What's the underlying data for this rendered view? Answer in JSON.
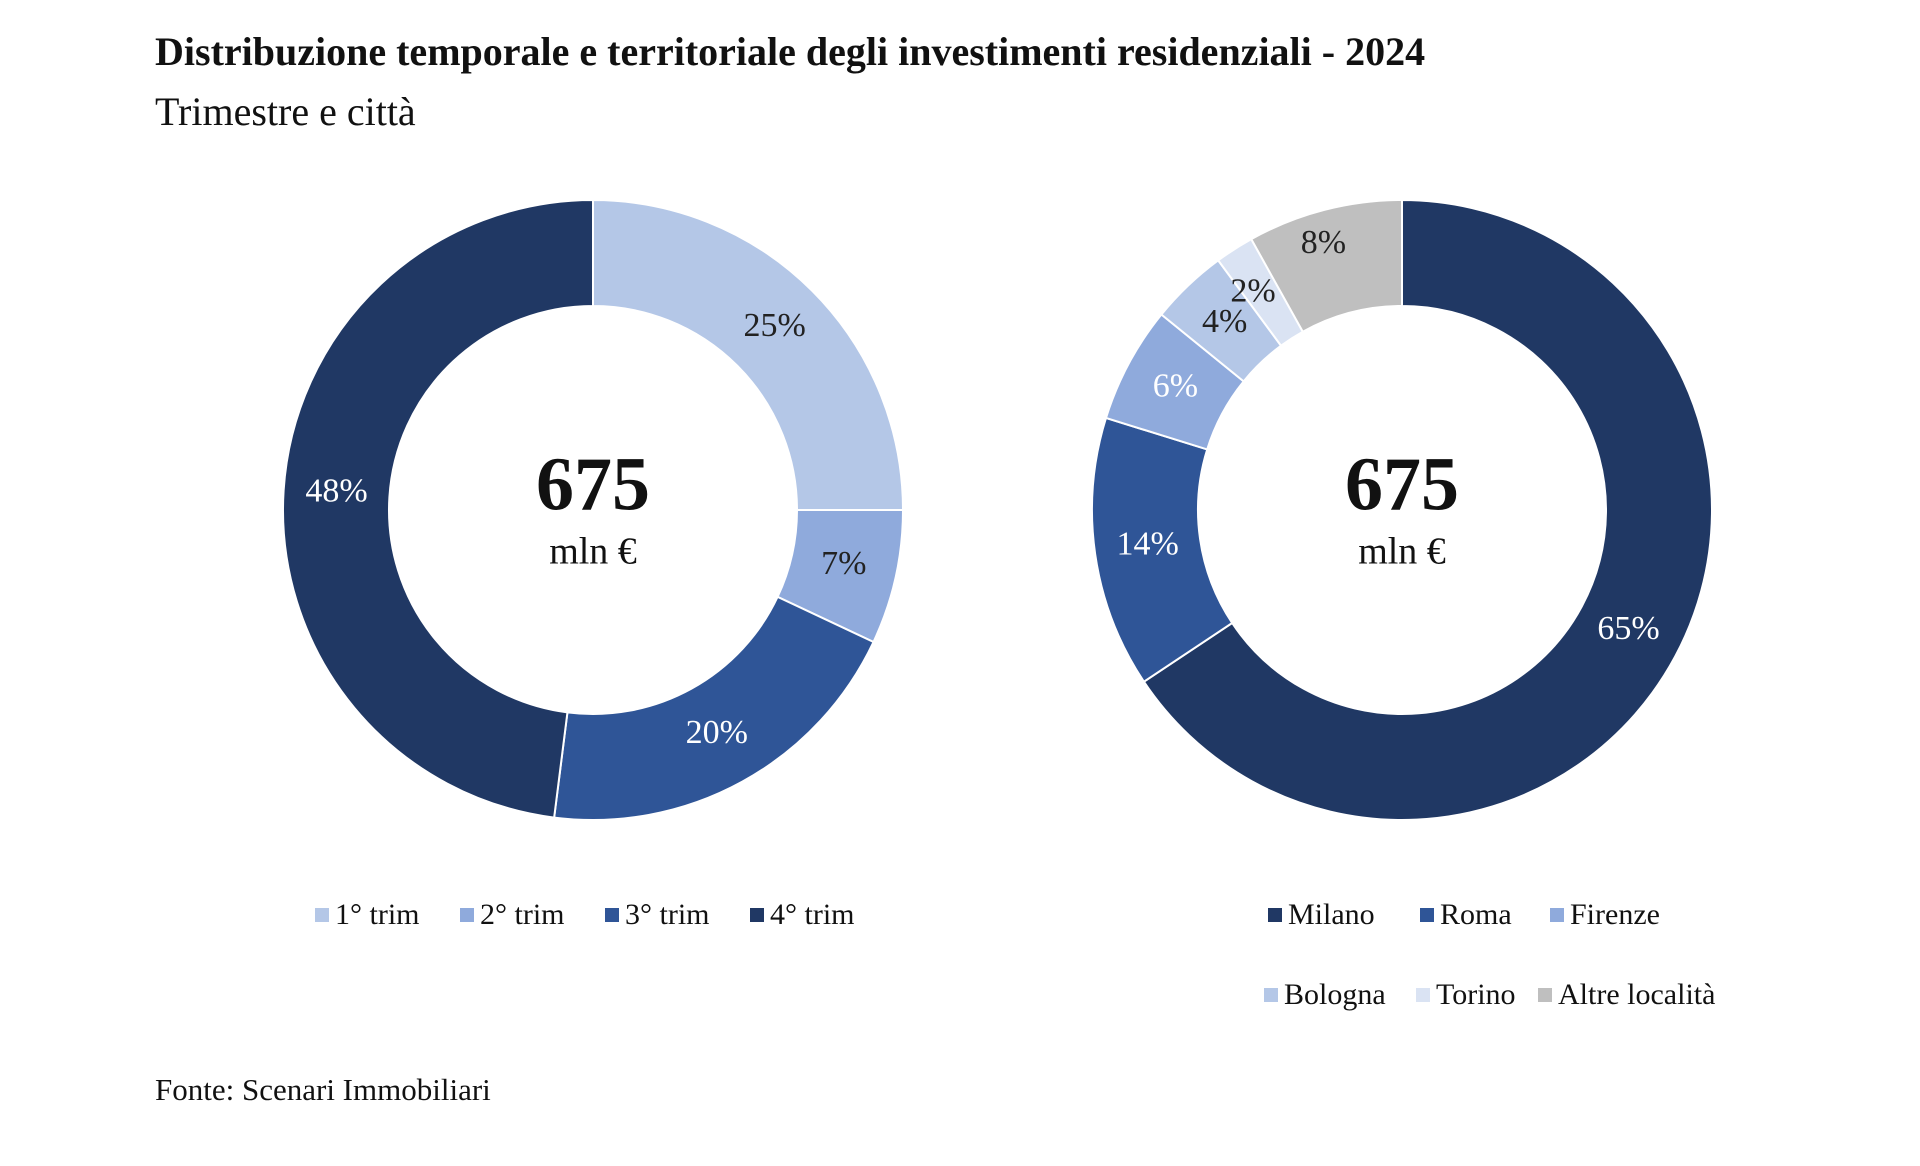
{
  "title": "Distribuzione temporale e territoriale degli investimenti residenziali - 2024",
  "subtitle": "Trimestre e città",
  "source": "Fonte: Scenari Immobiliari",
  "chart_data": [
    {
      "type": "pie",
      "donut": true,
      "center_value": "675",
      "center_unit": "mln €",
      "categories": [
        "1° trim",
        "2° trim",
        "3° trim",
        "4° trim"
      ],
      "values": [
        25,
        7,
        20,
        48
      ],
      "labels": [
        "25%",
        "7%",
        "20%",
        "48%"
      ],
      "colors": [
        "#b4c7e7",
        "#8faadc",
        "#2f5597",
        "#203864"
      ],
      "label_colors": [
        "#222222",
        "#222222",
        "#ffffff",
        "#ffffff"
      ],
      "legend_position": "bottom"
    },
    {
      "type": "pie",
      "donut": true,
      "center_value": "675",
      "center_unit": "mln €",
      "categories": [
        "Milano",
        "Roma",
        "Firenze",
        "Bologna",
        "Torino",
        "Altre località"
      ],
      "values": [
        65,
        14,
        6,
        4,
        2,
        8
      ],
      "labels": [
        "65%",
        "14%",
        "6%",
        "4%",
        "2%",
        "8%"
      ],
      "colors": [
        "#203864",
        "#2f5597",
        "#8faadc",
        "#b4c7e7",
        "#dae3f3",
        "#bfbfbf"
      ],
      "label_colors": [
        "#ffffff",
        "#ffffff",
        "#ffffff",
        "#222222",
        "#222222",
        "#222222"
      ],
      "legend_position": "bottom"
    }
  ]
}
